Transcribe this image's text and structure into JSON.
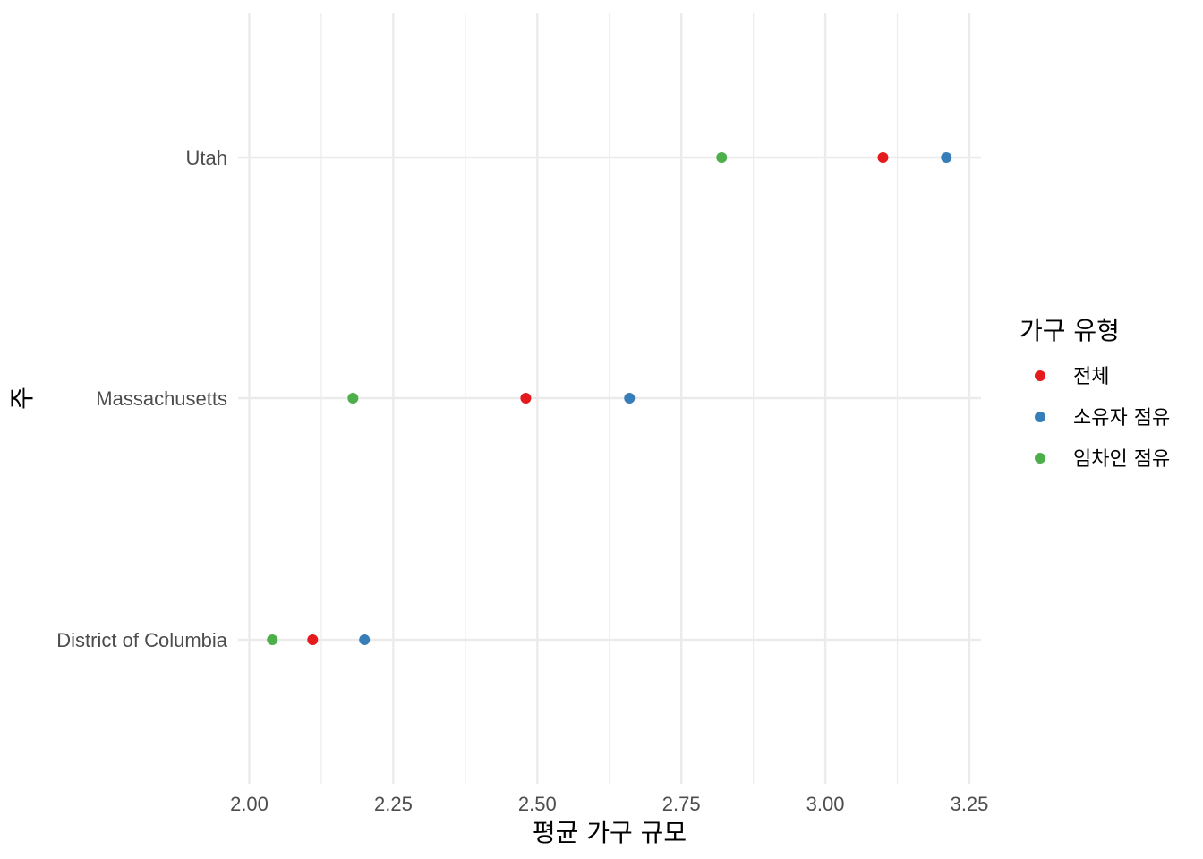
{
  "chart_data": {
    "type": "scatter",
    "xlabel": "평균 가구 규모",
    "ylabel": "주",
    "xlim": [
      2.0,
      3.27
    ],
    "x_ticks": [
      "2.00",
      "2.25",
      "2.50",
      "2.75",
      "3.00",
      "3.25"
    ],
    "categories": [
      "District of Columbia",
      "Massachusetts",
      "Utah"
    ],
    "legend": {
      "title": "가구 유형",
      "position": "right"
    },
    "grid": true,
    "series": [
      {
        "name": "전체",
        "color": "#e41a1c",
        "values": [
          2.11,
          2.48,
          3.1
        ]
      },
      {
        "name": "소유자 점유",
        "color": "#377eb8",
        "values": [
          2.2,
          2.66,
          3.21
        ]
      },
      {
        "name": "임차인 점유",
        "color": "#4daf4a",
        "values": [
          2.04,
          2.18,
          2.82
        ]
      }
    ]
  }
}
